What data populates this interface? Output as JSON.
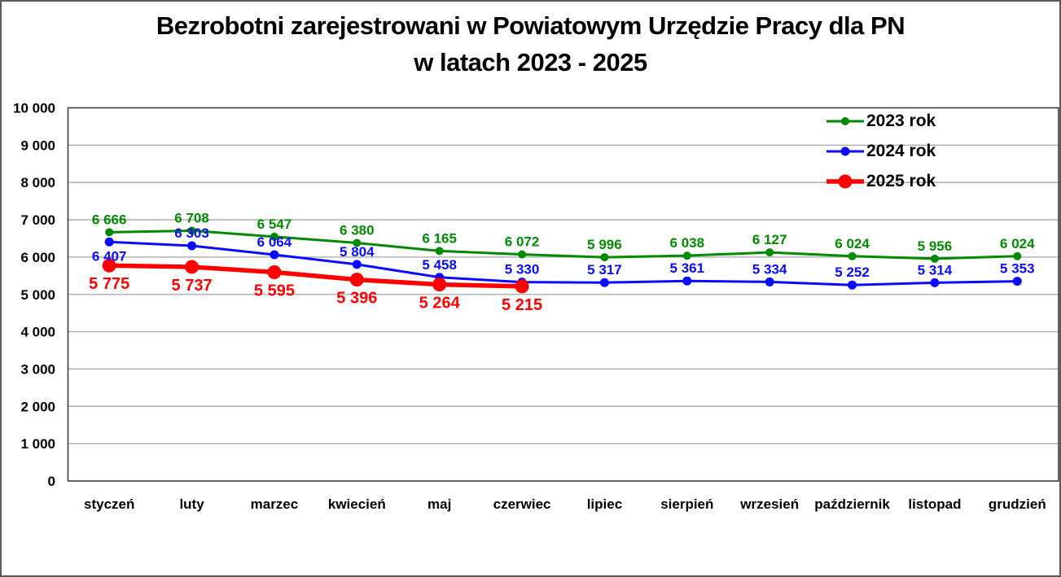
{
  "title": {
    "line1": "Bezrobotni zarejestrowani w Powiatowym Urzędzie Pracy dla PN",
    "line2": "w latach 2023 - 2025"
  },
  "colors": {
    "background": "#FFFFFF",
    "grid": "#A6A6A6",
    "axis": "#3F3F3F",
    "text": "#000000",
    "frame_border": "#595959",
    "series_2023": "#008A00",
    "series_2024": "#0B0BFF",
    "series_2025": "#FF0000"
  },
  "chart_data": {
    "type": "line",
    "title": "Bezrobotni zarejestrowani w Powiatowym Urzędzie Pracy dla PN w latach 2023 - 2025",
    "categories": [
      "styczeń",
      "luty",
      "marzec",
      "kwiecień",
      "maj",
      "czerwiec",
      "lipiec",
      "sierpień",
      "wrzesień",
      "październik",
      "listopad",
      "grudzień"
    ],
    "series": [
      {
        "name": "2023 rok",
        "color": "#008A00",
        "values": [
          6666,
          6708,
          6547,
          6380,
          6165,
          6072,
          5996,
          6038,
          6127,
          6024,
          5956,
          6024
        ],
        "line_width": 3,
        "marker_radius": 5,
        "label_size": 17,
        "label_position": "above",
        "label_exceptions": {}
      },
      {
        "name": "2024 rok",
        "color": "#0B0BFF",
        "values": [
          6407,
          6303,
          6064,
          5804,
          5458,
          5330,
          5317,
          5361,
          5334,
          5252,
          5314,
          5353
        ],
        "line_width": 3,
        "marker_radius": 5.5,
        "label_size": 17,
        "label_position": "above",
        "label_exceptions": {
          "0": "below"
        }
      },
      {
        "name": "2025 rok",
        "color": "#FF0000",
        "values": [
          5775,
          5737,
          5595,
          5396,
          5264,
          5215
        ],
        "line_width": 5.5,
        "marker_radius": 8.5,
        "label_size": 20,
        "label_position": "below",
        "label_exceptions": {}
      }
    ],
    "xlabel": "",
    "ylabel": "",
    "ylim": [
      0,
      10000
    ],
    "ytick_step": 1000,
    "grid": true,
    "legend_position": "top-right",
    "number_format": "space-thousands"
  }
}
